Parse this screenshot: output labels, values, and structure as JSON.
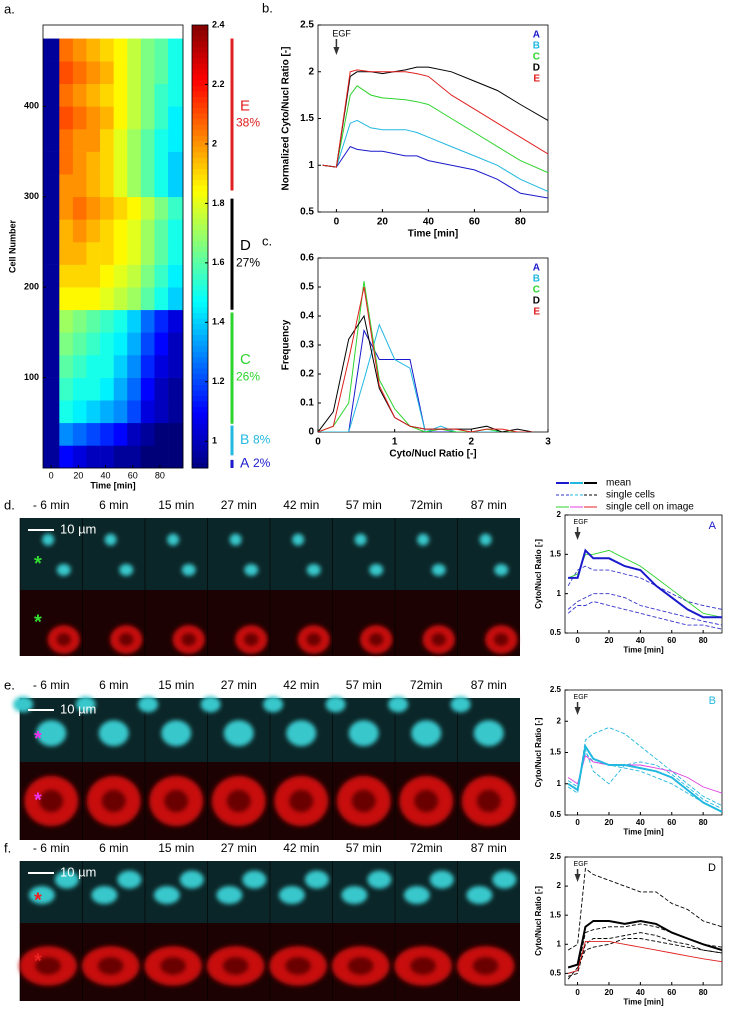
{
  "chart_data": [
    {
      "type": "heatmap",
      "panel_label": "a.",
      "x_label": "Time [min]",
      "y_label": "Cell Number",
      "x_edges": [
        -6,
        6,
        16,
        26,
        36,
        46,
        56,
        66,
        76,
        86,
        97
      ],
      "y_edges": [
        0,
        25,
        50,
        75,
        100,
        125,
        150,
        175,
        200,
        225,
        250,
        275,
        300,
        325,
        350,
        375,
        400,
        425,
        450,
        475
      ],
      "z": [
        [
          0.95,
          1.1,
          1.05,
          1.0,
          1.0,
          0.95,
          0.95,
          0.9,
          0.9,
          0.9
        ],
        [
          0.95,
          1.3,
          1.25,
          1.2,
          1.15,
          1.1,
          1.0,
          0.95,
          0.9,
          0.9
        ],
        [
          0.95,
          1.5,
          1.45,
          1.4,
          1.35,
          1.3,
          1.2,
          1.05,
          1.0,
          0.95
        ],
        [
          0.95,
          1.55,
          1.5,
          1.5,
          1.45,
          1.35,
          1.25,
          1.1,
          1.0,
          0.95
        ],
        [
          0.95,
          1.6,
          1.55,
          1.5,
          1.5,
          1.4,
          1.3,
          1.15,
          1.05,
          1.0
        ],
        [
          0.95,
          1.65,
          1.6,
          1.55,
          1.5,
          1.45,
          1.35,
          1.2,
          1.1,
          1.0
        ],
        [
          0.95,
          1.7,
          1.65,
          1.6,
          1.55,
          1.5,
          1.4,
          1.25,
          1.15,
          1.05
        ],
        [
          0.95,
          1.85,
          1.85,
          1.85,
          1.8,
          1.75,
          1.7,
          1.6,
          1.5,
          1.4
        ],
        [
          0.95,
          1.9,
          1.9,
          1.9,
          1.85,
          1.8,
          1.75,
          1.65,
          1.55,
          1.45
        ],
        [
          0.95,
          1.95,
          1.95,
          1.9,
          1.9,
          1.85,
          1.8,
          1.7,
          1.6,
          1.5
        ],
        [
          0.95,
          1.95,
          2.0,
          1.95,
          1.9,
          1.85,
          1.8,
          1.7,
          1.6,
          1.5
        ],
        [
          0.95,
          2.0,
          2.05,
          2.0,
          1.95,
          1.9,
          1.85,
          1.75,
          1.65,
          1.55
        ],
        [
          0.95,
          2.0,
          2.0,
          1.95,
          1.9,
          1.8,
          1.7,
          1.6,
          1.5,
          1.4
        ],
        [
          0.95,
          2.05,
          2.0,
          1.95,
          1.9,
          1.8,
          1.7,
          1.6,
          1.5,
          1.4
        ],
        [
          0.95,
          2.05,
          2.0,
          2.0,
          1.9,
          1.8,
          1.7,
          1.6,
          1.5,
          1.45
        ],
        [
          0.95,
          2.1,
          2.05,
          2.0,
          1.95,
          1.85,
          1.75,
          1.65,
          1.55,
          1.45
        ],
        [
          0.95,
          2.05,
          2.0,
          1.95,
          1.9,
          1.85,
          1.75,
          1.65,
          1.55,
          1.5
        ],
        [
          0.95,
          2.1,
          2.05,
          2.0,
          1.95,
          1.85,
          1.75,
          1.65,
          1.6,
          1.5
        ],
        [
          0.95,
          2.05,
          2.0,
          1.95,
          1.9,
          1.85,
          1.75,
          1.65,
          1.6,
          1.5
        ]
      ],
      "xlim": [
        -6,
        97
      ],
      "ylim": [
        0,
        490
      ],
      "xticks": [
        0,
        20,
        40,
        60,
        80
      ],
      "yticks": [
        100,
        200,
        300,
        400
      ],
      "zlim": [
        0.91,
        2.4
      ],
      "zticks": [
        1,
        1.2,
        1.4,
        1.6,
        1.8,
        2,
        2.2,
        2.4
      ],
      "colormap": "jet",
      "groups": {
        "names": [
          "A",
          "B",
          "C",
          "D",
          "E"
        ],
        "values": [
          2,
          8,
          26,
          27,
          38
        ],
        "value_labels": [
          "2%",
          "8%",
          "26%",
          "27%",
          "38%"
        ],
        "colors": [
          "#1a1acc",
          "#22b8e0",
          "#2ed42e",
          "#000000",
          "#e02020"
        ],
        "ranges": [
          [
            0,
            9
          ],
          [
            14,
            47
          ],
          [
            49,
            172
          ],
          [
            175,
            298
          ],
          [
            307,
            475
          ]
        ]
      }
    },
    {
      "type": "line",
      "panel_label": "b.",
      "x_label": "Time [min]",
      "y_label": "Normalized Cyto/Nucl Ratio [-]",
      "x": [
        -6,
        0,
        6,
        9,
        15,
        20,
        30,
        35,
        40,
        50,
        60,
        70,
        80,
        92
      ],
      "series": [
        {
          "name": "A",
          "color": "#1a1acc",
          "values": [
            1,
            0.98,
            1.2,
            1.17,
            1.15,
            1.15,
            1.1,
            1.1,
            1.05,
            1.0,
            0.95,
            0.85,
            0.7,
            0.65
          ]
        },
        {
          "name": "B",
          "color": "#22b8e0",
          "values": [
            1,
            0.98,
            1.45,
            1.48,
            1.4,
            1.38,
            1.38,
            1.35,
            1.3,
            1.2,
            1.1,
            1.0,
            0.85,
            0.72
          ]
        },
        {
          "name": "C",
          "color": "#2ed42e",
          "values": [
            1,
            0.98,
            1.75,
            1.85,
            1.75,
            1.72,
            1.7,
            1.68,
            1.65,
            1.5,
            1.35,
            1.2,
            1.05,
            0.92
          ]
        },
        {
          "name": "D",
          "color": "#000000",
          "values": [
            1,
            0.98,
            1.95,
            2.0,
            2.0,
            1.98,
            2.02,
            2.05,
            2.05,
            2.0,
            1.9,
            1.8,
            1.65,
            1.48
          ]
        },
        {
          "name": "E",
          "color": "#e02020",
          "values": [
            1,
            0.98,
            2.0,
            2.02,
            2.0,
            2.0,
            2.0,
            1.98,
            1.95,
            1.75,
            1.6,
            1.45,
            1.3,
            1.12
          ]
        }
      ],
      "xlim": [
        -8,
        92
      ],
      "ylim": [
        0.5,
        2.5
      ],
      "xticks": [
        0,
        20,
        40,
        60,
        80
      ],
      "yticks": [
        0.5,
        1,
        1.5,
        2,
        2.5
      ],
      "annotations": [
        {
          "text": "EGF",
          "x": 0
        }
      ],
      "legend": "top-right"
    },
    {
      "type": "line",
      "panel_label": "c.",
      "x_label": "Cyto/Nucl Ratio [-]",
      "y_label": "Frequency",
      "x": [
        0,
        0.2,
        0.4,
        0.6,
        0.8,
        1.0,
        1.2,
        1.4,
        1.6,
        1.8,
        2.0,
        2.2,
        2.4,
        2.6,
        2.8
      ],
      "series": [
        {
          "name": "A",
          "color": "#1a1acc",
          "values": [
            0,
            0,
            0,
            0.35,
            0.25,
            0.25,
            0.25,
            0,
            0,
            0,
            0,
            0,
            0,
            0,
            0
          ]
        },
        {
          "name": "B",
          "color": "#22b8e0",
          "values": [
            0,
            0,
            0,
            0.18,
            0.37,
            0.25,
            0.22,
            0,
            0.02,
            0,
            0,
            0,
            0,
            0,
            0
          ]
        },
        {
          "name": "C",
          "color": "#2ed42e",
          "values": [
            0,
            0.02,
            0.1,
            0.52,
            0.18,
            0.08,
            0.02,
            0,
            0.01,
            0,
            0,
            0.01,
            0,
            0,
            0
          ]
        },
        {
          "name": "D",
          "color": "#000000",
          "values": [
            0,
            0.07,
            0.32,
            0.4,
            0.15,
            0.05,
            0.02,
            0.01,
            0.01,
            0.01,
            0.01,
            0.02,
            0,
            0.01,
            0
          ]
        },
        {
          "name": "E",
          "color": "#e02020",
          "values": [
            0,
            0.02,
            0.25,
            0.5,
            0.16,
            0.05,
            0.02,
            0.01,
            0.01,
            0.01,
            0,
            0.01,
            0.01,
            0,
            0
          ]
        }
      ],
      "xlim": [
        0,
        3
      ],
      "ylim": [
        0,
        0.6
      ],
      "xticks": [
        0,
        1,
        2,
        3
      ],
      "yticks": [
        0,
        0.1,
        0.2,
        0.3,
        0.4,
        0.5,
        0.6
      ],
      "legend": "top-right"
    },
    {
      "type": "line",
      "x_label": "Time [min]",
      "y_label": "Cyto/Nucl Ratio [-]",
      "tag": "A",
      "tag_color": "#1a1acc",
      "x": [
        -6,
        0,
        5,
        10,
        20,
        30,
        40,
        50,
        60,
        70,
        80,
        92
      ],
      "series": [
        {
          "color": "#3333cc",
          "dash": true,
          "width": 0.9,
          "values": [
            1.1,
            1.3,
            1.35,
            1.3,
            1.3,
            1.25,
            1.2,
            1.1,
            1.0,
            0.9,
            0.85,
            0.8
          ]
        },
        {
          "color": "#3333cc",
          "dash": true,
          "width": 0.9,
          "values": [
            0.8,
            0.9,
            0.95,
            1.0,
            1.0,
            0.95,
            0.85,
            0.8,
            0.75,
            0.7,
            0.65,
            0.6
          ]
        },
        {
          "color": "#3333cc",
          "dash": true,
          "width": 0.9,
          "values": [
            0.75,
            0.85,
            0.85,
            0.9,
            0.85,
            0.8,
            0.75,
            0.7,
            0.65,
            0.6,
            0.6,
            0.55
          ]
        },
        {
          "color": "#2ed42e",
          "dash": false,
          "width": 0.9,
          "values": [
            1.2,
            1.25,
            1.5,
            1.5,
            1.55,
            1.45,
            1.35,
            1.2,
            1.05,
            0.9,
            0.75,
            0.7
          ]
        },
        {
          "color": "#1a1acc",
          "dash": false,
          "width": 2,
          "values": [
            1.2,
            1.2,
            1.55,
            1.45,
            1.45,
            1.35,
            1.3,
            1.1,
            0.95,
            0.8,
            0.7,
            0.7
          ]
        }
      ],
      "xlim": [
        -8,
        92
      ],
      "ylim": [
        0.5,
        2
      ],
      "xticks": [
        0,
        20,
        40,
        60,
        80
      ],
      "yticks": [
        0.5,
        1,
        1.5,
        2
      ],
      "annotations": [
        {
          "text": "EGF",
          "x": 0
        }
      ]
    },
    {
      "type": "line",
      "x_label": "Time [min]",
      "y_label": "Cyto/Nucl Ratio [-]",
      "tag": "B",
      "tag_color": "#22b8e0",
      "x": [
        -6,
        0,
        5,
        10,
        20,
        30,
        40,
        50,
        60,
        70,
        80,
        92
      ],
      "series": [
        {
          "color": "#22b8e0",
          "dash": true,
          "width": 0.9,
          "values": [
            1.0,
            0.9,
            1.7,
            1.8,
            1.9,
            1.8,
            1.6,
            1.4,
            1.2,
            1.0,
            0.8,
            0.65
          ]
        },
        {
          "color": "#22b8e0",
          "dash": true,
          "width": 0.9,
          "values": [
            0.95,
            0.85,
            1.55,
            1.2,
            1.0,
            1.3,
            1.35,
            1.3,
            1.15,
            0.95,
            0.75,
            0.6
          ]
        },
        {
          "color": "#22b8e0",
          "dash": true,
          "width": 0.9,
          "values": [
            1.05,
            0.95,
            1.5,
            1.35,
            1.3,
            1.25,
            1.2,
            1.1,
            1.0,
            0.85,
            0.7,
            0.55
          ]
        },
        {
          "color": "#e040e0",
          "dash": false,
          "width": 0.9,
          "values": [
            1.1,
            1.0,
            1.45,
            1.35,
            1.3,
            1.3,
            1.3,
            1.25,
            1.2,
            1.1,
            0.95,
            0.85
          ]
        },
        {
          "color": "#22b8e0",
          "dash": false,
          "width": 2,
          "values": [
            1.0,
            0.9,
            1.6,
            1.4,
            1.3,
            1.3,
            1.25,
            1.2,
            1.1,
            0.9,
            0.7,
            0.55
          ]
        }
      ],
      "xlim": [
        -8,
        92
      ],
      "ylim": [
        0.5,
        2.5
      ],
      "xticks": [
        0,
        20,
        40,
        60,
        80
      ],
      "yticks": [
        0.5,
        1,
        1.5,
        2,
        2.5
      ],
      "annotations": [
        {
          "text": "EGF",
          "x": 0
        }
      ]
    },
    {
      "type": "line",
      "x_label": "Time [min]",
      "y_label": "Cyto/Nucl Ratio [-]",
      "tag": "D",
      "tag_color": "#000000",
      "x": [
        -6,
        0,
        5,
        10,
        20,
        30,
        40,
        50,
        60,
        70,
        80,
        92
      ],
      "series": [
        {
          "color": "#000000",
          "dash": true,
          "width": 0.9,
          "values": [
            0.9,
            1.0,
            2.3,
            2.2,
            2.1,
            2.0,
            1.9,
            1.9,
            1.7,
            1.6,
            1.4,
            1.3
          ]
        },
        {
          "color": "#000000",
          "dash": true,
          "width": 0.9,
          "values": [
            0.5,
            0.55,
            1.2,
            1.25,
            1.3,
            1.3,
            1.35,
            1.3,
            1.2,
            1.1,
            1.0,
            0.95
          ]
        },
        {
          "color": "#000000",
          "dash": true,
          "width": 0.9,
          "values": [
            0.45,
            0.5,
            1.0,
            1.1,
            1.1,
            1.15,
            1.2,
            1.15,
            1.05,
            1.0,
            0.9,
            0.85
          ]
        },
        {
          "color": "#000000",
          "dash": true,
          "width": 0.9,
          "values": [
            0.4,
            0.6,
            0.9,
            0.95,
            1.0,
            1.1,
            1.1,
            1.05,
            1.0,
            0.95,
            0.9,
            0.85
          ]
        },
        {
          "color": "#e02020",
          "dash": false,
          "width": 0.9,
          "values": [
            0.5,
            0.55,
            1.05,
            1.05,
            1.05,
            1.0,
            0.95,
            0.9,
            0.85,
            0.8,
            0.75,
            0.7
          ]
        },
        {
          "color": "#000000",
          "dash": false,
          "width": 2,
          "values": [
            0.6,
            0.65,
            1.3,
            1.4,
            1.4,
            1.35,
            1.4,
            1.35,
            1.2,
            1.1,
            1.0,
            0.9
          ]
        }
      ],
      "xlim": [
        -8,
        92
      ],
      "ylim": [
        0.3,
        2.5
      ],
      "xticks": [
        0,
        20,
        40,
        60,
        80
      ],
      "yticks": [
        0.5,
        1,
        1.5,
        2,
        2.5
      ],
      "annotations": [
        {
          "text": "EGF",
          "x": 0
        }
      ]
    }
  ],
  "legend": {
    "entries": [
      "mean",
      "single cells",
      "single cell on image"
    ]
  },
  "image_panels": [
    {
      "label": "d.",
      "times": [
        "- 6 min",
        "6 min",
        "15 min",
        "27 min",
        "42 min",
        "57 min",
        "72min",
        "87 min"
      ],
      "scale_bar": "10 µm",
      "marker": "*",
      "marker_color": "#33dd33"
    },
    {
      "label": "e.",
      "times": [
        "- 6 min",
        "6 min",
        "15 min",
        "27 min",
        "42 min",
        "57 min",
        "72min",
        "87 min"
      ],
      "scale_bar": "10 µm",
      "marker": "*",
      "marker_color": "#ee33ee"
    },
    {
      "label": "f.",
      "times": [
        "- 6 min",
        "6 min",
        "15 min",
        "27 min",
        "42 min",
        "57 min",
        "72min",
        "87 min"
      ],
      "scale_bar": "10 µm",
      "marker": "*",
      "marker_color": "#ee2222"
    }
  ]
}
